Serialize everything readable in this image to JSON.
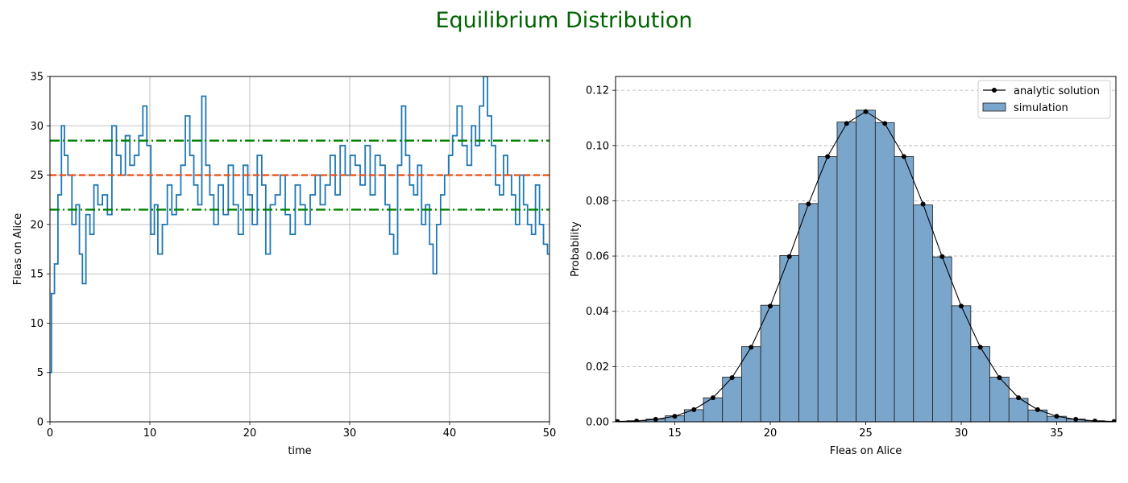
{
  "figure": {
    "suptitle": "Equilibrium Distribution",
    "suptitle_color": "#006400"
  },
  "chart_data": [
    {
      "type": "line",
      "xlabel": "time",
      "ylabel": "Fleas on Alice",
      "xlim": [
        0,
        50
      ],
      "ylim": [
        0,
        35
      ],
      "xticks": [
        "0",
        "10",
        "20",
        "30",
        "40",
        "50"
      ],
      "yticks": [
        "0",
        "5",
        "10",
        "15",
        "20",
        "25",
        "30",
        "35"
      ],
      "grid": true,
      "series": [
        {
          "color": "#1f77b4",
          "style": "solid",
          "x": [
            0,
            0.3,
            0.6,
            1.0,
            1.3,
            1.6,
            2.0,
            2.4,
            2.8,
            3.1,
            3.4,
            3.8,
            4.2,
            4.6,
            5.0,
            5.5,
            6.0,
            6.4,
            6.9,
            7.3,
            7.8,
            8.2,
            8.7,
            9.1,
            9.5,
            9.9,
            10.3,
            10.6,
            11.0,
            11.5,
            12.0,
            12.4,
            12.9,
            13.3,
            13.8,
            14.2,
            14.6,
            15.0,
            15.4,
            15.8,
            16.2,
            16.6,
            17.1,
            17.6,
            18.1,
            18.6,
            19.1,
            19.6,
            20.0,
            20.5,
            21.0,
            21.4,
            21.8,
            22.3,
            22.8,
            23.3,
            23.8,
            24.3,
            24.8,
            25.3,
            25.8,
            26.3,
            26.8,
            27.3,
            27.8,
            28.3,
            28.8,
            29.3,
            29.8,
            30.3,
            30.8,
            31.3,
            31.8,
            32.3,
            32.8,
            33.3,
            33.8,
            34.2,
            34.6,
            35.0,
            35.4,
            35.8,
            36.2,
            36.6,
            37.0,
            37.4,
            37.8,
            38.2,
            38.5,
            38.9,
            39.3,
            39.7,
            40.1,
            40.5,
            41.0,
            41.5,
            42.0,
            42.4,
            42.8,
            43.2,
            43.6,
            44.0,
            44.4,
            44.8,
            45.2,
            45.6,
            46.0,
            46.4,
            46.8,
            47.2,
            47.6,
            48.0,
            48.4,
            48.8,
            49.2,
            49.6,
            50.0
          ],
          "y": [
            5,
            13,
            16,
            23,
            30,
            27,
            25,
            20,
            22,
            17,
            14,
            21,
            19,
            24,
            22,
            23,
            21,
            30,
            27,
            25,
            29,
            26,
            27,
            29,
            32,
            28,
            19,
            22,
            17,
            20,
            24,
            21,
            23,
            26,
            31,
            27,
            24,
            22,
            33,
            26,
            23,
            20,
            24,
            21,
            26,
            22,
            19,
            26,
            23,
            20,
            27,
            24,
            17,
            22,
            23,
            25,
            21,
            19,
            24,
            22,
            20,
            23,
            25,
            22,
            24,
            27,
            23,
            28,
            25,
            27,
            26,
            24,
            28,
            23,
            27,
            26,
            22,
            19,
            17,
            26,
            32,
            27,
            24,
            23,
            26,
            20,
            22,
            18,
            15,
            20,
            23,
            25,
            27,
            29,
            32,
            28,
            26,
            30,
            28,
            32,
            35,
            31,
            28,
            24,
            23,
            27,
            25,
            23,
            20,
            25,
            22,
            20,
            19,
            24,
            20,
            18,
            17
          ]
        },
        {
          "color": "#e8561c",
          "style": "dashed",
          "x": [
            0,
            50
          ],
          "y": [
            25,
            25
          ]
        },
        {
          "color": "#008000",
          "style": "dashdot",
          "x": [
            0,
            50
          ],
          "y": [
            28.5,
            28.5
          ]
        },
        {
          "color": "#008000",
          "style": "dashdot",
          "x": [
            0,
            50
          ],
          "y": [
            21.5,
            21.5
          ]
        }
      ]
    },
    {
      "type": "bar",
      "xlabel": "Fleas on Alice",
      "ylabel": "Probability",
      "xlim": [
        11.9,
        38.1
      ],
      "ylim": [
        0,
        0.125
      ],
      "xticks": [
        "15",
        "20",
        "25",
        "30",
        "35"
      ],
      "yticks": [
        "0.00",
        "0.02",
        "0.04",
        "0.06",
        "0.08",
        "0.10",
        "0.12"
      ],
      "grid": "y-dashed",
      "legend_position": "top-right",
      "series": [
        {
          "name": "analytic solution",
          "type": "line",
          "color": "#000000",
          "marker": "circle",
          "x": [
            12,
            13,
            14,
            15,
            16,
            17,
            18,
            19,
            20,
            21,
            22,
            23,
            24,
            25,
            26,
            27,
            28,
            29,
            30,
            31,
            32,
            33,
            34,
            35,
            36,
            37,
            38
          ],
          "y": [
            0.0001,
            0.0003,
            0.0009,
            0.002,
            0.0044,
            0.0087,
            0.016,
            0.027,
            0.0419,
            0.0598,
            0.0788,
            0.096,
            0.108,
            0.1123,
            0.108,
            0.096,
            0.0788,
            0.0598,
            0.0419,
            0.027,
            0.016,
            0.0087,
            0.0044,
            0.002,
            0.0009,
            0.0003,
            0.0001
          ]
        },
        {
          "name": "simulation",
          "type": "bar",
          "color": "#7ba6cc",
          "edge_color": "#1a1a1a",
          "x": [
            12,
            13,
            14,
            15,
            16,
            17,
            18,
            19,
            20,
            21,
            22,
            23,
            24,
            25,
            26,
            27,
            28,
            29,
            30,
            31,
            32,
            33,
            34,
            35,
            36,
            37,
            38
          ],
          "y": [
            0.0002,
            0.0004,
            0.001,
            0.0022,
            0.0044,
            0.0087,
            0.0162,
            0.0272,
            0.0422,
            0.0602,
            0.079,
            0.096,
            0.1085,
            0.1128,
            0.1083,
            0.096,
            0.0785,
            0.0597,
            0.042,
            0.0272,
            0.0162,
            0.0085,
            0.0043,
            0.002,
            0.001,
            0.0004,
            0.0002
          ]
        }
      ]
    }
  ]
}
